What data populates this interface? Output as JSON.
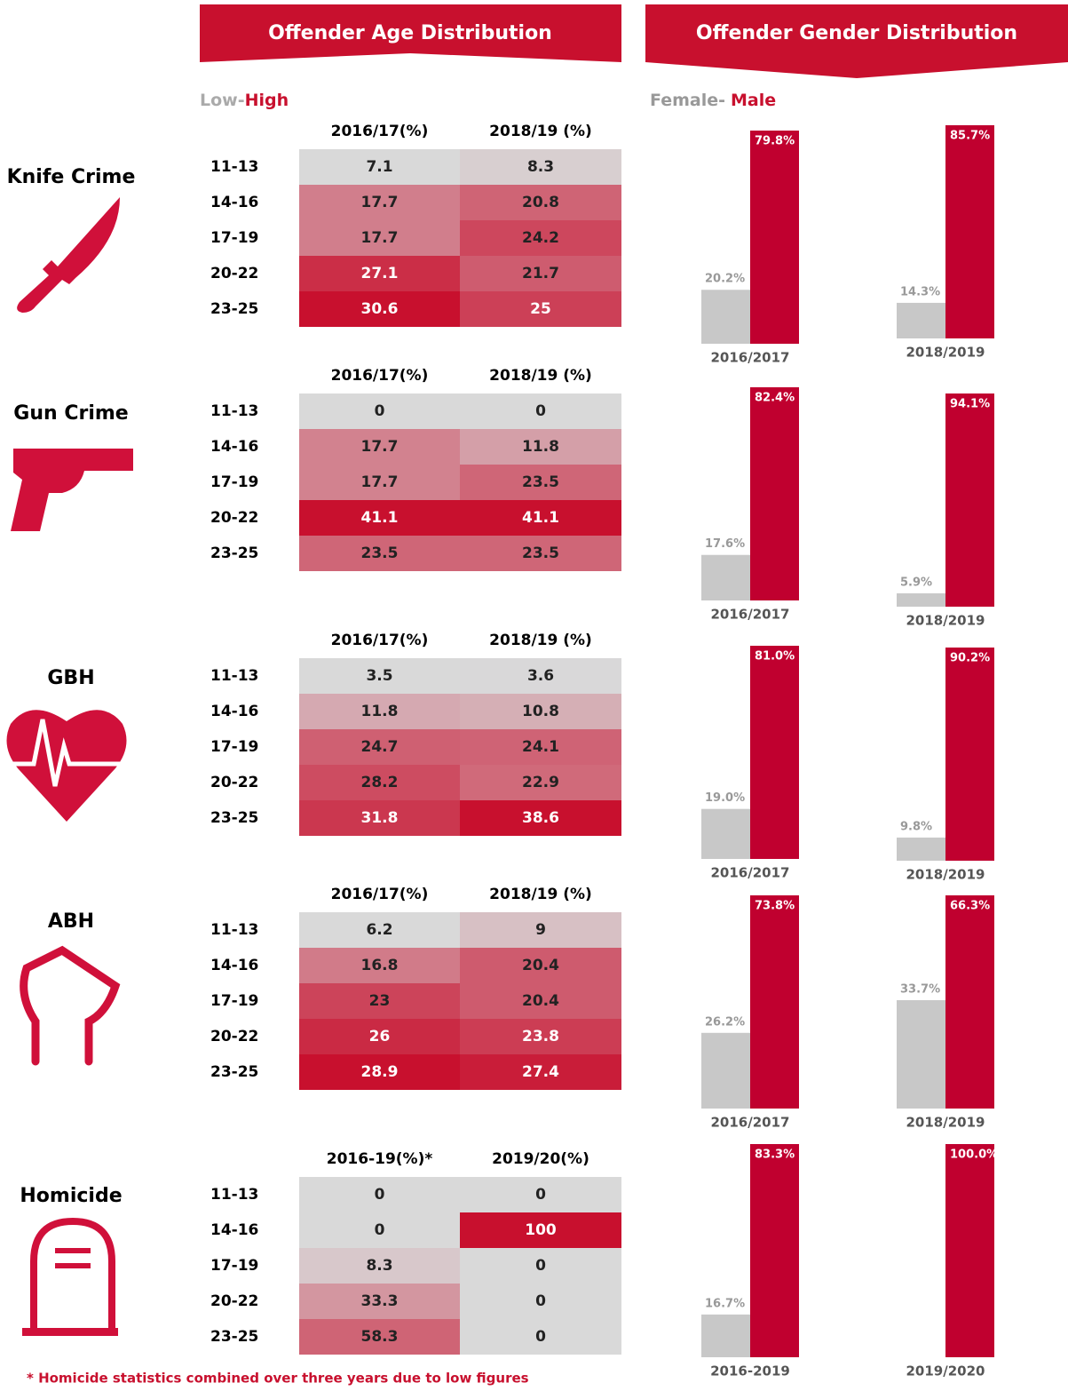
{
  "headers": {
    "age": "Offender Age Distribution",
    "gender": "Offender Gender Distribution"
  },
  "age_legend": {
    "low": "Low-",
    "high": "High"
  },
  "gender_legend": {
    "female": "Female-",
    "male": "Male"
  },
  "age_groups": [
    "11-13",
    "14-16",
    "17-19",
    "20-22",
    "23-25"
  ],
  "heat_colors": [
    "#d9d9d9",
    "#c8102e"
  ],
  "gender_colors": [
    "#c8c8c8",
    "#c0002f"
  ],
  "sections": [
    {
      "name": "Knife Crime",
      "columns": [
        "2016/17(%)",
        "2018/19 (%)"
      ],
      "values": [
        [
          7.1,
          8.3
        ],
        [
          17.7,
          20.8
        ],
        [
          17.7,
          24.2
        ],
        [
          27.1,
          21.7
        ],
        [
          30.6,
          25
        ]
      ],
      "gender": [
        {
          "period": "2016/2017",
          "values": [
            20.2,
            79.8
          ],
          "value_labels": [
            "20.2%",
            "79.8%"
          ]
        },
        {
          "period": "2018/2019",
          "values": [
            14.3,
            85.7
          ],
          "value_labels": [
            "14.3%",
            "85.7%"
          ]
        }
      ]
    },
    {
      "name": "Gun Crime",
      "columns": [
        "2016/17(%)",
        "2018/19 (%)"
      ],
      "values": [
        [
          0,
          0
        ],
        [
          17.7,
          11.8
        ],
        [
          17.7,
          23.5
        ],
        [
          41.1,
          41.1
        ],
        [
          23.5,
          23.5
        ]
      ],
      "gender": [
        {
          "period": "2016/2017",
          "values": [
            17.6,
            82.4
          ],
          "value_labels": [
            "17.6%",
            "82.4%"
          ]
        },
        {
          "period": "2018/2019",
          "values": [
            5.9,
            94.1
          ],
          "value_labels": [
            "5.9%",
            "94.1%"
          ]
        }
      ]
    },
    {
      "name": "GBH",
      "columns": [
        "2016/17(%)",
        "2018/19 (%)"
      ],
      "values": [
        [
          3.5,
          3.6
        ],
        [
          11.8,
          10.8
        ],
        [
          24.7,
          24.1
        ],
        [
          28.2,
          22.9
        ],
        [
          31.8,
          38.6
        ]
      ],
      "gender": [
        {
          "period": "2016/2017",
          "values": [
            19.0,
            81.0
          ],
          "value_labels": [
            "19.0%",
            "81.0%"
          ]
        },
        {
          "period": "2018/2019",
          "values": [
            9.8,
            90.2
          ],
          "value_labels": [
            "9.8%",
            "90.2%"
          ]
        }
      ]
    },
    {
      "name": "ABH",
      "columns": [
        "2016/17(%)",
        "2018/19 (%)"
      ],
      "values": [
        [
          6.2,
          9
        ],
        [
          16.8,
          20.4
        ],
        [
          23,
          20.4
        ],
        [
          26,
          23.8
        ],
        [
          28.9,
          27.4
        ]
      ],
      "gender": [
        {
          "period": "2016/2017",
          "values": [
            26.2,
            73.8
          ],
          "value_labels": [
            "26.2%",
            "73.8%"
          ]
        },
        {
          "period": "2018/2019",
          "values": [
            33.7,
            66.3
          ],
          "value_labels": [
            "33.7%",
            "66.3%"
          ]
        }
      ]
    },
    {
      "name": "Homicide",
      "columns": [
        "2016-19(%)*",
        "2019/20(%)"
      ],
      "values": [
        [
          0,
          0
        ],
        [
          0,
          100
        ],
        [
          8.3,
          0
        ],
        [
          33.3,
          0
        ],
        [
          58.3,
          0
        ]
      ],
      "gender": [
        {
          "period": "2016-2019",
          "values": [
            16.7,
            83.3
          ],
          "value_labels": [
            "16.7%",
            "83.3%"
          ]
        },
        {
          "period": "2019/2020",
          "values": [
            0,
            100.0
          ],
          "value_labels": [
            "",
            "100.0%"
          ]
        }
      ]
    }
  ],
  "footnote": "* Homicide statistics combined over three years due to low figures"
}
